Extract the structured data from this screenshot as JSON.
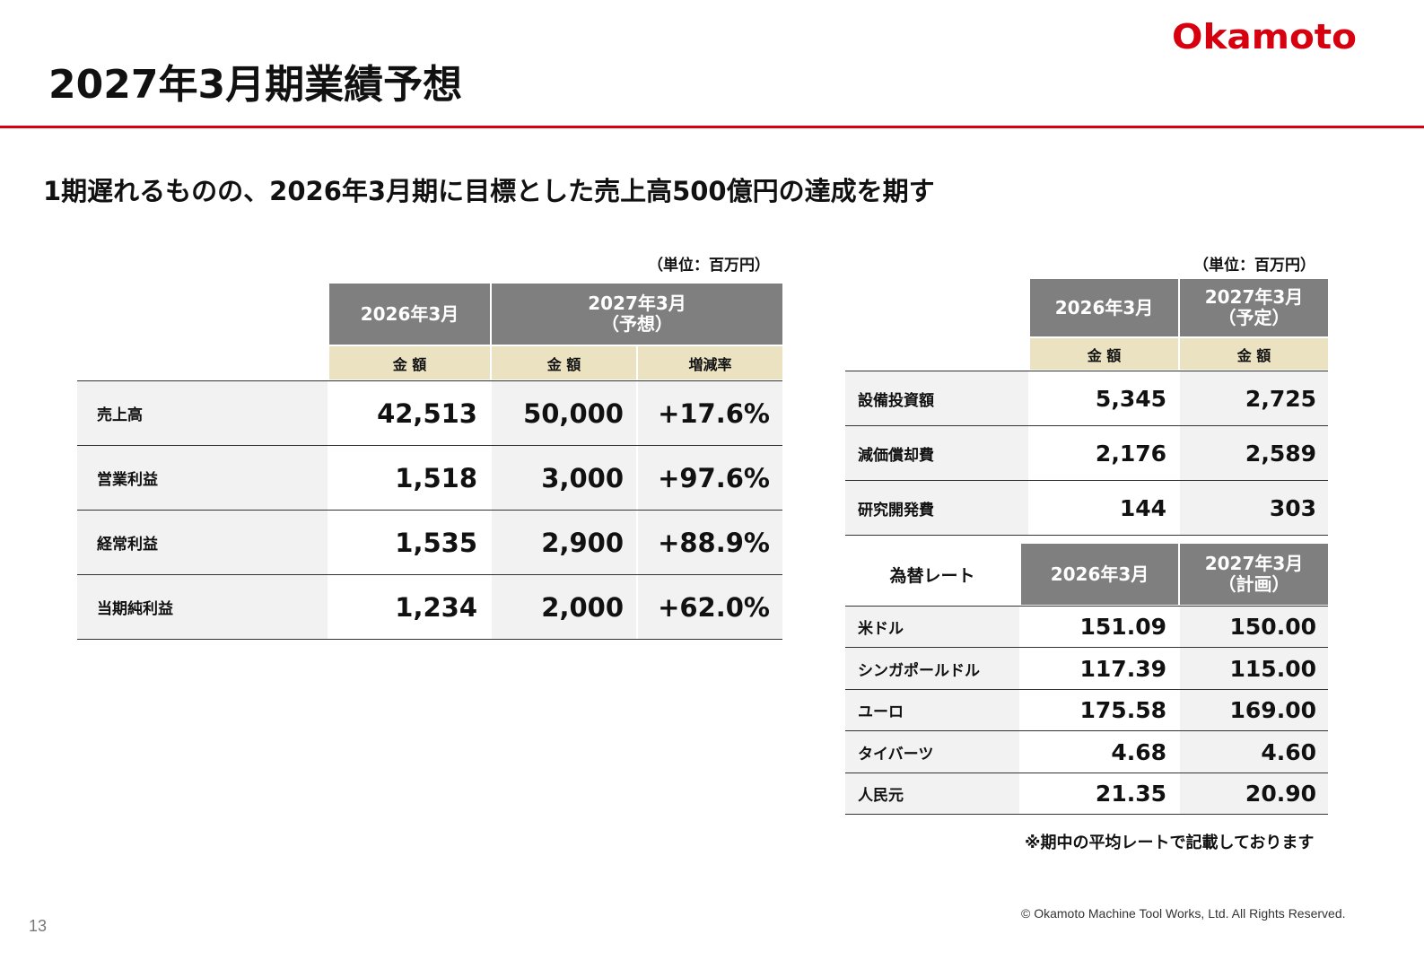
{
  "header": {
    "title": "2027年3月期業績予想",
    "logo": "Okamoto"
  },
  "subtitle": "1期遅れるものの、2026年3月期に目標とした売上高500億円の達成を期す",
  "left_table": {
    "unit": "（単位：百万円）",
    "col1_header": "2026年3月",
    "col2_header_line1": "2027年3月",
    "col2_header_line2": "（予想）",
    "sub_amount1": "金 額",
    "sub_amount2": "金 額",
    "sub_rate": "増減率",
    "rows": [
      {
        "label": "売上高",
        "v2026": "42,513",
        "v2027": "50,000",
        "rate": "+17.6%"
      },
      {
        "label": "営業利益",
        "v2026": "1,518",
        "v2027": "3,000",
        "rate": "+97.6%"
      },
      {
        "label": "経常利益",
        "v2026": "1,535",
        "v2027": "2,900",
        "rate": "+88.9%"
      },
      {
        "label": "当期純利益",
        "v2026": "1,234",
        "v2027": "2,000",
        "rate": "+62.0%"
      }
    ]
  },
  "right_table": {
    "unit": "（単位：百万円）",
    "col1_header": "2026年3月",
    "col2_header_line1": "2027年3月",
    "col2_header_line2": "（予定）",
    "sub_amount1": "金 額",
    "sub_amount2": "金 額",
    "rows": [
      {
        "label": "設備投資額",
        "v2026": "5,345",
        "v2027": "2,725"
      },
      {
        "label": "減価償却費",
        "v2026": "2,176",
        "v2027": "2,589"
      },
      {
        "label": "研究開発費",
        "v2026": "144",
        "v2027": "303"
      }
    ]
  },
  "fx_table": {
    "label_header": "為替レート",
    "col1_header": "2026年3月",
    "col2_header_line1": "2027年3月",
    "col2_header_line2": "（計画）",
    "rows": [
      {
        "label": "米ドル",
        "v2026": "151.09",
        "v2027": "150.00"
      },
      {
        "label": "シンガポールドル",
        "v2026": "117.39",
        "v2027": "115.00"
      },
      {
        "label": "ユーロ",
        "v2026": "175.58",
        "v2027": "169.00"
      },
      {
        "label": "タイバーツ",
        "v2026": "4.68",
        "v2027": "4.60"
      },
      {
        "label": "人民元",
        "v2026": "21.35",
        "v2027": "20.90"
      }
    ],
    "note": "※期中の平均レートで記載しております"
  },
  "footer": {
    "copyright": "© Okamoto Machine Tool Works, Ltd. All Rights Reserved.",
    "page_number": "13"
  },
  "colors": {
    "accent_red": "#d7000f",
    "header_gray": "#7f7f7f",
    "subheader_beige": "#ebe2c2",
    "label_gray": "#f2f2f2"
  }
}
